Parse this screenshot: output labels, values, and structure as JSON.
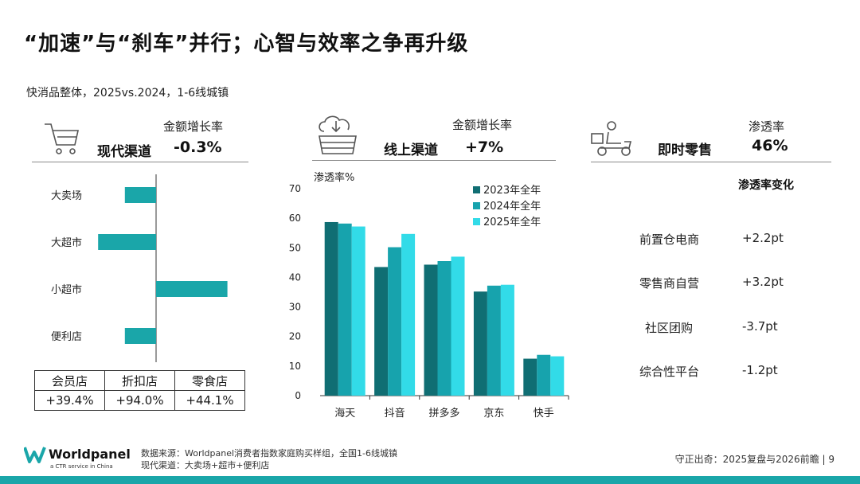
{
  "title": "“加速”与“刹车”并行；心智与效率之争再升级",
  "subtitle": "快消品整体，2025vs.2024，1-6线城镇",
  "panels": {
    "modern": {
      "metric_label": "金额增长率",
      "channel": "现代渠道",
      "value": "-0.3%",
      "icon": "shopping-cart-icon"
    },
    "online": {
      "metric_label": "金额增长率",
      "channel": "线上渠道",
      "value": "+7%",
      "icon": "cloud-basket-icon"
    },
    "instant": {
      "metric_label": "渗透率",
      "channel": "即时零售",
      "value": "46%",
      "icon": "delivery-scooter-icon"
    }
  },
  "format_table": {
    "headers": [
      "会员店",
      "折扣店",
      "零食店"
    ],
    "values": [
      "+39.4%",
      "+94.0%",
      "+44.1%"
    ]
  },
  "instant_changes": {
    "header": "渗透率变化",
    "rows": [
      {
        "label": "前置仓电商",
        "value": "+2.2pt"
      },
      {
        "label": "零售商自营",
        "value": "+3.2pt"
      },
      {
        "label": "社区团购",
        "value": "-3.7pt"
      },
      {
        "label": "综合性平台",
        "value": "-1.2pt"
      }
    ]
  },
  "chart_data": [
    {
      "type": "bar",
      "orientation": "horizontal",
      "categories": [
        "大卖场",
        "大超市",
        "小超市",
        "便利店"
      ],
      "values": [
        -3.5,
        -6.5,
        8.0,
        -3.5
      ],
      "note": "values estimated from bar lengths; no axis printed",
      "color": "#1aa6a9"
    },
    {
      "type": "bar",
      "categories": [
        "海天",
        "抖音",
        "拼多多",
        "京东",
        "快手"
      ],
      "series": [
        {
          "name": "2023年全年",
          "values": [
            58.7,
            43.5,
            44.3,
            35.2,
            12.5
          ],
          "color": "#106e73"
        },
        {
          "name": "2024年全年",
          "values": [
            58.2,
            50.2,
            45.5,
            37.2,
            13.8
          ],
          "color": "#17a3ad"
        },
        {
          "name": "2025年全年",
          "values": [
            57.2,
            54.7,
            47.0,
            37.5,
            13.3
          ],
          "color": "#32dbe8"
        }
      ],
      "ylabel": "渗透率%",
      "ylim": [
        0,
        70
      ],
      "yticks": [
        0,
        10,
        20,
        30,
        40,
        50,
        60,
        70
      ],
      "grid": false,
      "legend": "top-right"
    }
  ],
  "logo": {
    "name": "Worldpanel",
    "tagline": "a CTR service in China"
  },
  "footer": {
    "source_line1": "数据来源：Worldpanel消费者指数家庭购买样组，全国1-6线城镇",
    "source_line2": "现代渠道：大卖场+超市+便利店",
    "right": "守正出奇：2025复盘与2026前瞻 | 9"
  },
  "colors": {
    "accent": "#1aa6a9",
    "dark": "#106e73",
    "light": "#32dbe8"
  }
}
